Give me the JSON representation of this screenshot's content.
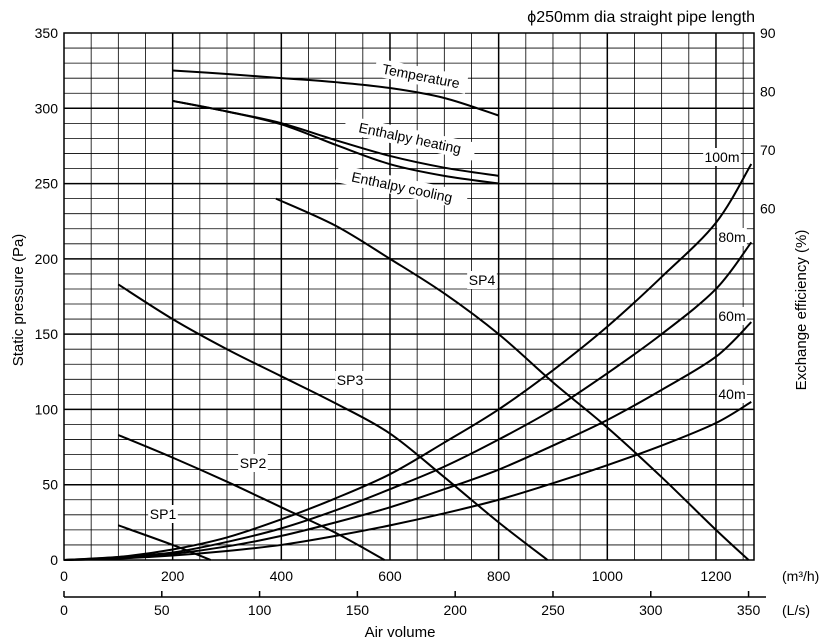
{
  "chart_data": {
    "type": "line",
    "title": "ϕ250mm dia straight pipe length",
    "xlabel": "Air volume",
    "ylabel": "Static pressure (Pa)",
    "y2label": "Exchange efficiency (%)",
    "x_unit_primary": "(m³/h)",
    "x_unit_secondary": "(L/s)",
    "xlim": [
      0,
      1270
    ],
    "ylim": [
      0,
      350
    ],
    "y2lim": [
      0,
      90
    ],
    "x_ticks": [
      "0",
      "200",
      "400",
      "600",
      "800",
      "1000",
      "1200"
    ],
    "x_ticks_secondary": [
      "0",
      "50",
      "100",
      "150",
      "200",
      "250",
      "300",
      "350"
    ],
    "y_ticks": [
      "0",
      "50",
      "100",
      "150",
      "200",
      "250",
      "300",
      "350"
    ],
    "y2_ticks": [
      "60",
      "70",
      "80",
      "90"
    ],
    "grid": true,
    "series": [
      {
        "name": "SP1",
        "axis": "left",
        "points": [
          [
            100,
            23
          ],
          [
            200,
            10
          ],
          [
            270,
            0
          ]
        ]
      },
      {
        "name": "SP2",
        "axis": "left",
        "points": [
          [
            100,
            83
          ],
          [
            200,
            68
          ],
          [
            300,
            52
          ],
          [
            400,
            35
          ],
          [
            500,
            18
          ],
          [
            590,
            0
          ]
        ]
      },
      {
        "name": "SP3",
        "axis": "left",
        "points": [
          [
            100,
            183
          ],
          [
            200,
            160
          ],
          [
            300,
            140
          ],
          [
            400,
            122
          ],
          [
            500,
            104
          ],
          [
            600,
            84
          ],
          [
            700,
            55
          ],
          [
            800,
            25
          ],
          [
            890,
            0
          ]
        ]
      },
      {
        "name": "SP4",
        "axis": "left",
        "points": [
          [
            390,
            240
          ],
          [
            500,
            222
          ],
          [
            600,
            200
          ],
          [
            700,
            177
          ],
          [
            800,
            150
          ],
          [
            900,
            118
          ],
          [
            1000,
            88
          ],
          [
            1100,
            55
          ],
          [
            1200,
            20
          ],
          [
            1260,
            0
          ]
        ]
      },
      {
        "name": "100m",
        "axis": "left",
        "points": [
          [
            0,
            0
          ],
          [
            100,
            2
          ],
          [
            200,
            7
          ],
          [
            300,
            15
          ],
          [
            400,
            27
          ],
          [
            500,
            41
          ],
          [
            600,
            57
          ],
          [
            700,
            78
          ],
          [
            800,
            100
          ],
          [
            900,
            126
          ],
          [
            1000,
            155
          ],
          [
            1100,
            188
          ],
          [
            1200,
            224
          ],
          [
            1265,
            263
          ]
        ]
      },
      {
        "name": "80m",
        "axis": "left",
        "points": [
          [
            0,
            0
          ],
          [
            100,
            2
          ],
          [
            200,
            5
          ],
          [
            300,
            12
          ],
          [
            400,
            21
          ],
          [
            500,
            33
          ],
          [
            600,
            47
          ],
          [
            700,
            62
          ],
          [
            800,
            80
          ],
          [
            900,
            100
          ],
          [
            1000,
            124
          ],
          [
            1100,
            150
          ],
          [
            1200,
            180
          ],
          [
            1265,
            211
          ]
        ]
      },
      {
        "name": "60m",
        "axis": "left",
        "points": [
          [
            0,
            0
          ],
          [
            100,
            1
          ],
          [
            200,
            4
          ],
          [
            300,
            9
          ],
          [
            400,
            16
          ],
          [
            500,
            25
          ],
          [
            600,
            35
          ],
          [
            700,
            47
          ],
          [
            800,
            60
          ],
          [
            900,
            76
          ],
          [
            1000,
            93
          ],
          [
            1100,
            113
          ],
          [
            1200,
            135
          ],
          [
            1265,
            158
          ]
        ]
      },
      {
        "name": "40m",
        "axis": "left",
        "points": [
          [
            0,
            0
          ],
          [
            100,
            1
          ],
          [
            200,
            3
          ],
          [
            300,
            6
          ],
          [
            400,
            10
          ],
          [
            500,
            16
          ],
          [
            600,
            23
          ],
          [
            700,
            31
          ],
          [
            800,
            40
          ],
          [
            900,
            51
          ],
          [
            1000,
            63
          ],
          [
            1100,
            76
          ],
          [
            1200,
            91
          ],
          [
            1265,
            105
          ]
        ]
      },
      {
        "name": "Temperature",
        "axis": "right",
        "points": [
          [
            200,
            83.6
          ],
          [
            300,
            83.0
          ],
          [
            400,
            82.3
          ],
          [
            500,
            81.6
          ],
          [
            600,
            80.6
          ],
          [
            700,
            78.9
          ],
          [
            800,
            75.9
          ]
        ]
      },
      {
        "name": "Enthalpy heating",
        "axis": "right",
        "points": [
          [
            200,
            78.4
          ],
          [
            300,
            76.6
          ],
          [
            400,
            74.6
          ],
          [
            500,
            71.7
          ],
          [
            600,
            69.0
          ],
          [
            700,
            67.0
          ],
          [
            800,
            65.6
          ]
        ]
      },
      {
        "name": "Enthalpy cooling",
        "axis": "right",
        "points": [
          [
            200,
            78.4
          ],
          [
            300,
            76.6
          ],
          [
            400,
            74.4
          ],
          [
            500,
            70.9
          ],
          [
            600,
            67.6
          ],
          [
            700,
            65.6
          ],
          [
            800,
            64.3
          ]
        ]
      }
    ]
  }
}
